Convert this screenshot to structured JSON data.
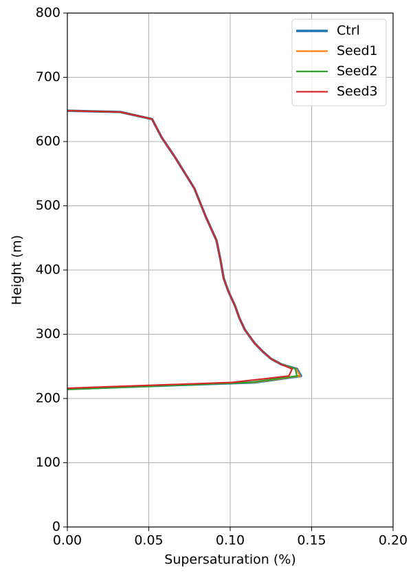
{
  "chart_data": {
    "type": "line",
    "xlabel": "Supersaturation (%)",
    "ylabel": "Height (m)",
    "xlim": [
      0,
      0.2
    ],
    "ylim": [
      0,
      800
    ],
    "xticks": [
      {
        "value": 0,
        "label": "0.00"
      },
      {
        "value": 0.05,
        "label": "0.05"
      },
      {
        "value": 0.1,
        "label": "0.10"
      },
      {
        "value": 0.15,
        "label": "0.15"
      },
      {
        "value": 0.2,
        "label": "0.20"
      }
    ],
    "yticks": [
      0,
      100,
      200,
      300,
      400,
      500,
      600,
      700,
      800
    ],
    "grid": true,
    "legend": "upper right",
    "series": [
      {
        "name": "Ctrl",
        "color": "#1f77b4",
        "x": [
          0,
          0.0325,
          0.052,
          0.058,
          0.066,
          0.078,
          0.085,
          0.0916,
          0.094,
          0.096,
          0.099,
          0.103,
          0.1055,
          0.109,
          0.115,
          0.12,
          0.125,
          0.1315,
          0.141,
          0.1435,
          0.115,
          0
        ],
        "y": [
          648,
          646,
          635,
          606,
          576,
          527,
          483,
          446,
          416,
          387,
          366,
          344,
          326,
          307,
          286,
          273,
          262,
          253,
          246,
          235,
          225,
          215
        ]
      },
      {
        "name": "Seed1",
        "color": "#ff7f0e",
        "x": [
          0,
          0.0325,
          0.052,
          0.058,
          0.066,
          0.078,
          0.085,
          0.0916,
          0.094,
          0.096,
          0.099,
          0.103,
          0.1055,
          0.109,
          0.115,
          0.12,
          0.125,
          0.1315,
          0.1405,
          0.143,
          0.114,
          0
        ],
        "y": [
          648,
          646,
          635,
          606,
          576,
          527,
          483,
          446,
          416,
          387,
          366,
          344,
          326,
          307,
          286,
          273,
          262,
          253,
          246,
          235,
          225,
          215
        ]
      },
      {
        "name": "Seed2",
        "color": "#2ca02c",
        "x": [
          0,
          0.0325,
          0.052,
          0.058,
          0.066,
          0.078,
          0.085,
          0.0916,
          0.094,
          0.096,
          0.099,
          0.103,
          0.1055,
          0.109,
          0.115,
          0.12,
          0.125,
          0.1315,
          0.14,
          0.141,
          0.112,
          0
        ],
        "y": [
          648,
          646,
          635,
          606,
          576,
          527,
          483,
          446,
          416,
          387,
          366,
          344,
          326,
          307,
          286,
          273,
          262,
          253,
          246,
          235,
          225,
          214
        ]
      },
      {
        "name": "Seed3",
        "color": "#d62728",
        "x": [
          0,
          0.0325,
          0.052,
          0.058,
          0.066,
          0.078,
          0.085,
          0.0916,
          0.094,
          0.096,
          0.099,
          0.103,
          0.1055,
          0.109,
          0.115,
          0.12,
          0.125,
          0.1315,
          0.138,
          0.136,
          0.101,
          0
        ],
        "y": [
          648,
          646,
          635,
          606,
          576,
          527,
          483,
          446,
          416,
          387,
          366,
          344,
          326,
          307,
          286,
          273,
          262,
          253,
          246,
          235,
          225,
          216
        ]
      }
    ]
  }
}
